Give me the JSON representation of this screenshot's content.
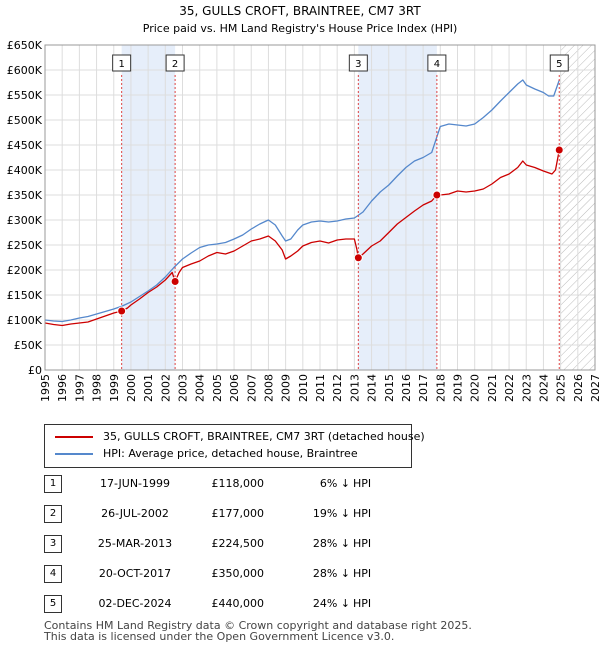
{
  "chart_data": {
    "type": "line",
    "title": "35, GULLS CROFT, BRAINTREE, CM7 3RT",
    "subtitle": "Price paid vs. HM Land Registry's House Price Index (HPI)",
    "xlim": [
      1995,
      2027
    ],
    "ylim": [
      0,
      650000
    ],
    "x_ticks": [
      "1995",
      "1996",
      "1997",
      "1998",
      "1999",
      "2000",
      "2001",
      "2002",
      "2003",
      "2004",
      "2005",
      "2006",
      "2007",
      "2008",
      "2009",
      "2010",
      "2011",
      "2012",
      "2013",
      "2014",
      "2015",
      "2016",
      "2017",
      "2018",
      "2019",
      "2020",
      "2021",
      "2022",
      "2023",
      "2024",
      "2025",
      "2026",
      "2027"
    ],
    "y_ticks": [
      {
        "value": 0,
        "label": "£0"
      },
      {
        "value": 50000,
        "label": "£50K"
      },
      {
        "value": 100000,
        "label": "£100K"
      },
      {
        "value": 150000,
        "label": "£150K"
      },
      {
        "value": 200000,
        "label": "£200K"
      },
      {
        "value": 250000,
        "label": "£250K"
      },
      {
        "value": 300000,
        "label": "£300K"
      },
      {
        "value": 350000,
        "label": "£350K"
      },
      {
        "value": 400000,
        "label": "£400K"
      },
      {
        "value": 450000,
        "label": "£450K"
      },
      {
        "value": 500000,
        "label": "£500K"
      },
      {
        "value": 550000,
        "label": "£550K"
      },
      {
        "value": 600000,
        "label": "£600K"
      },
      {
        "value": 650000,
        "label": "£650K"
      }
    ],
    "grid": true,
    "shaded_periods": [
      [
        1999.46,
        2002.57
      ],
      [
        2013.23,
        2017.8
      ]
    ],
    "future_hatch_from": 2025,
    "series": [
      {
        "name": "35, GULLS CROFT, BRAINTREE, CM7 3RT (detached house)",
        "color": "#cc0000",
        "x": [
          1995,
          1995.5,
          1996,
          1996.5,
          1997,
          1997.5,
          1998,
          1998.5,
          1999,
          1999.46,
          1999.8,
          2000,
          2000.5,
          2001,
          2001.5,
          2002,
          2002.4,
          2002.57,
          2002.8,
          2003,
          2003.5,
          2004,
          2004.5,
          2005,
          2005.5,
          2006,
          2006.5,
          2007,
          2007.5,
          2008,
          2008.4,
          2008.8,
          2009,
          2009.3,
          2009.7,
          2010,
          2010.5,
          2011,
          2011.5,
          2012,
          2012.5,
          2013,
          2013.15,
          2013.23,
          2013.5,
          2014,
          2014.5,
          2015,
          2015.5,
          2016,
          2016.5,
          2017,
          2017.5,
          2017.8,
          2018,
          2018.5,
          2019,
          2019.5,
          2020,
          2020.5,
          2021,
          2021.5,
          2022,
          2022.5,
          2022.8,
          2023,
          2023.5,
          2024,
          2024.5,
          2024.7,
          2024.92
        ],
        "y": [
          94000,
          91000,
          89000,
          92000,
          94000,
          96000,
          102000,
          108000,
          114000,
          118000,
          124000,
          130000,
          142000,
          155000,
          166000,
          180000,
          195000,
          177000,
          195000,
          205000,
          212000,
          218000,
          228000,
          235000,
          232000,
          238000,
          248000,
          258000,
          262000,
          268000,
          258000,
          240000,
          222000,
          228000,
          238000,
          248000,
          255000,
          258000,
          254000,
          260000,
          262000,
          262000,
          240000,
          224500,
          232000,
          248000,
          258000,
          275000,
          292000,
          305000,
          318000,
          330000,
          338000,
          350000,
          350000,
          352000,
          358000,
          356000,
          358000,
          362000,
          372000,
          385000,
          392000,
          405000,
          418000,
          410000,
          405000,
          398000,
          392000,
          400000,
          440000
        ]
      },
      {
        "name": "HPI: Average price, detached house, Braintree",
        "color": "#5588cc",
        "x": [
          1995,
          1995.5,
          1996,
          1996.5,
          1997,
          1997.5,
          1998,
          1998.5,
          1999,
          1999.5,
          2000,
          2000.5,
          2001,
          2001.5,
          2002,
          2002.5,
          2003,
          2003.5,
          2004,
          2004.5,
          2005,
          2005.5,
          2006,
          2006.5,
          2007,
          2007.5,
          2008,
          2008.4,
          2008.8,
          2009,
          2009.3,
          2009.7,
          2010,
          2010.5,
          2011,
          2011.5,
          2012,
          2012.5,
          2013,
          2013.5,
          2014,
          2014.5,
          2015,
          2015.5,
          2016,
          2016.5,
          2017,
          2017.5,
          2018,
          2018.5,
          2019,
          2019.5,
          2020,
          2020.5,
          2021,
          2021.5,
          2022,
          2022.5,
          2022.8,
          2023,
          2023.5,
          2024,
          2024.3,
          2024.6,
          2024.92
        ],
        "y": [
          100000,
          98000,
          97000,
          100000,
          104000,
          107000,
          112000,
          117000,
          122000,
          128000,
          136000,
          147000,
          158000,
          170000,
          186000,
          205000,
          222000,
          234000,
          245000,
          250000,
          252000,
          255000,
          262000,
          270000,
          282000,
          292000,
          300000,
          290000,
          268000,
          258000,
          262000,
          280000,
          290000,
          296000,
          298000,
          296000,
          298000,
          302000,
          304000,
          316000,
          338000,
          356000,
          370000,
          388000,
          405000,
          418000,
          425000,
          435000,
          487000,
          492000,
          490000,
          488000,
          492000,
          505000,
          520000,
          538000,
          555000,
          572000,
          580000,
          570000,
          562000,
          555000,
          548000,
          548000,
          580000
        ]
      }
    ],
    "markers": [
      {
        "label": "1",
        "x": 1999.46,
        "y": 118000
      },
      {
        "label": "2",
        "x": 2002.57,
        "y": 177000
      },
      {
        "label": "3",
        "x": 2013.23,
        "y": 224500
      },
      {
        "label": "4",
        "x": 2017.8,
        "y": 350000
      },
      {
        "label": "5",
        "x": 2024.92,
        "y": 440000
      }
    ]
  },
  "legend": [
    {
      "label": "35, GULLS CROFT, BRAINTREE, CM7 3RT (detached house)",
      "color": "#cc0000"
    },
    {
      "label": "HPI: Average price, detached house, Braintree",
      "color": "#5588cc"
    }
  ],
  "sales": [
    {
      "num": "1",
      "date": "17-JUN-1999",
      "price": "£118,000",
      "pct": "6% ↓",
      "hpi": "HPI"
    },
    {
      "num": "2",
      "date": "26-JUL-2002",
      "price": "£177,000",
      "pct": "19% ↓",
      "hpi": "HPI"
    },
    {
      "num": "3",
      "date": "25-MAR-2013",
      "price": "£224,500",
      "pct": "28% ↓",
      "hpi": "HPI"
    },
    {
      "num": "4",
      "date": "20-OCT-2017",
      "price": "£350,000",
      "pct": "28% ↓",
      "hpi": "HPI"
    },
    {
      "num": "5",
      "date": "02-DEC-2024",
      "price": "£440,000",
      "pct": "24% ↓",
      "hpi": "HPI"
    }
  ],
  "footer": {
    "line1": "Contains HM Land Registry data © Crown copyright and database right 2025.",
    "line2": "This data is licensed under the Open Government Licence v3.0."
  }
}
